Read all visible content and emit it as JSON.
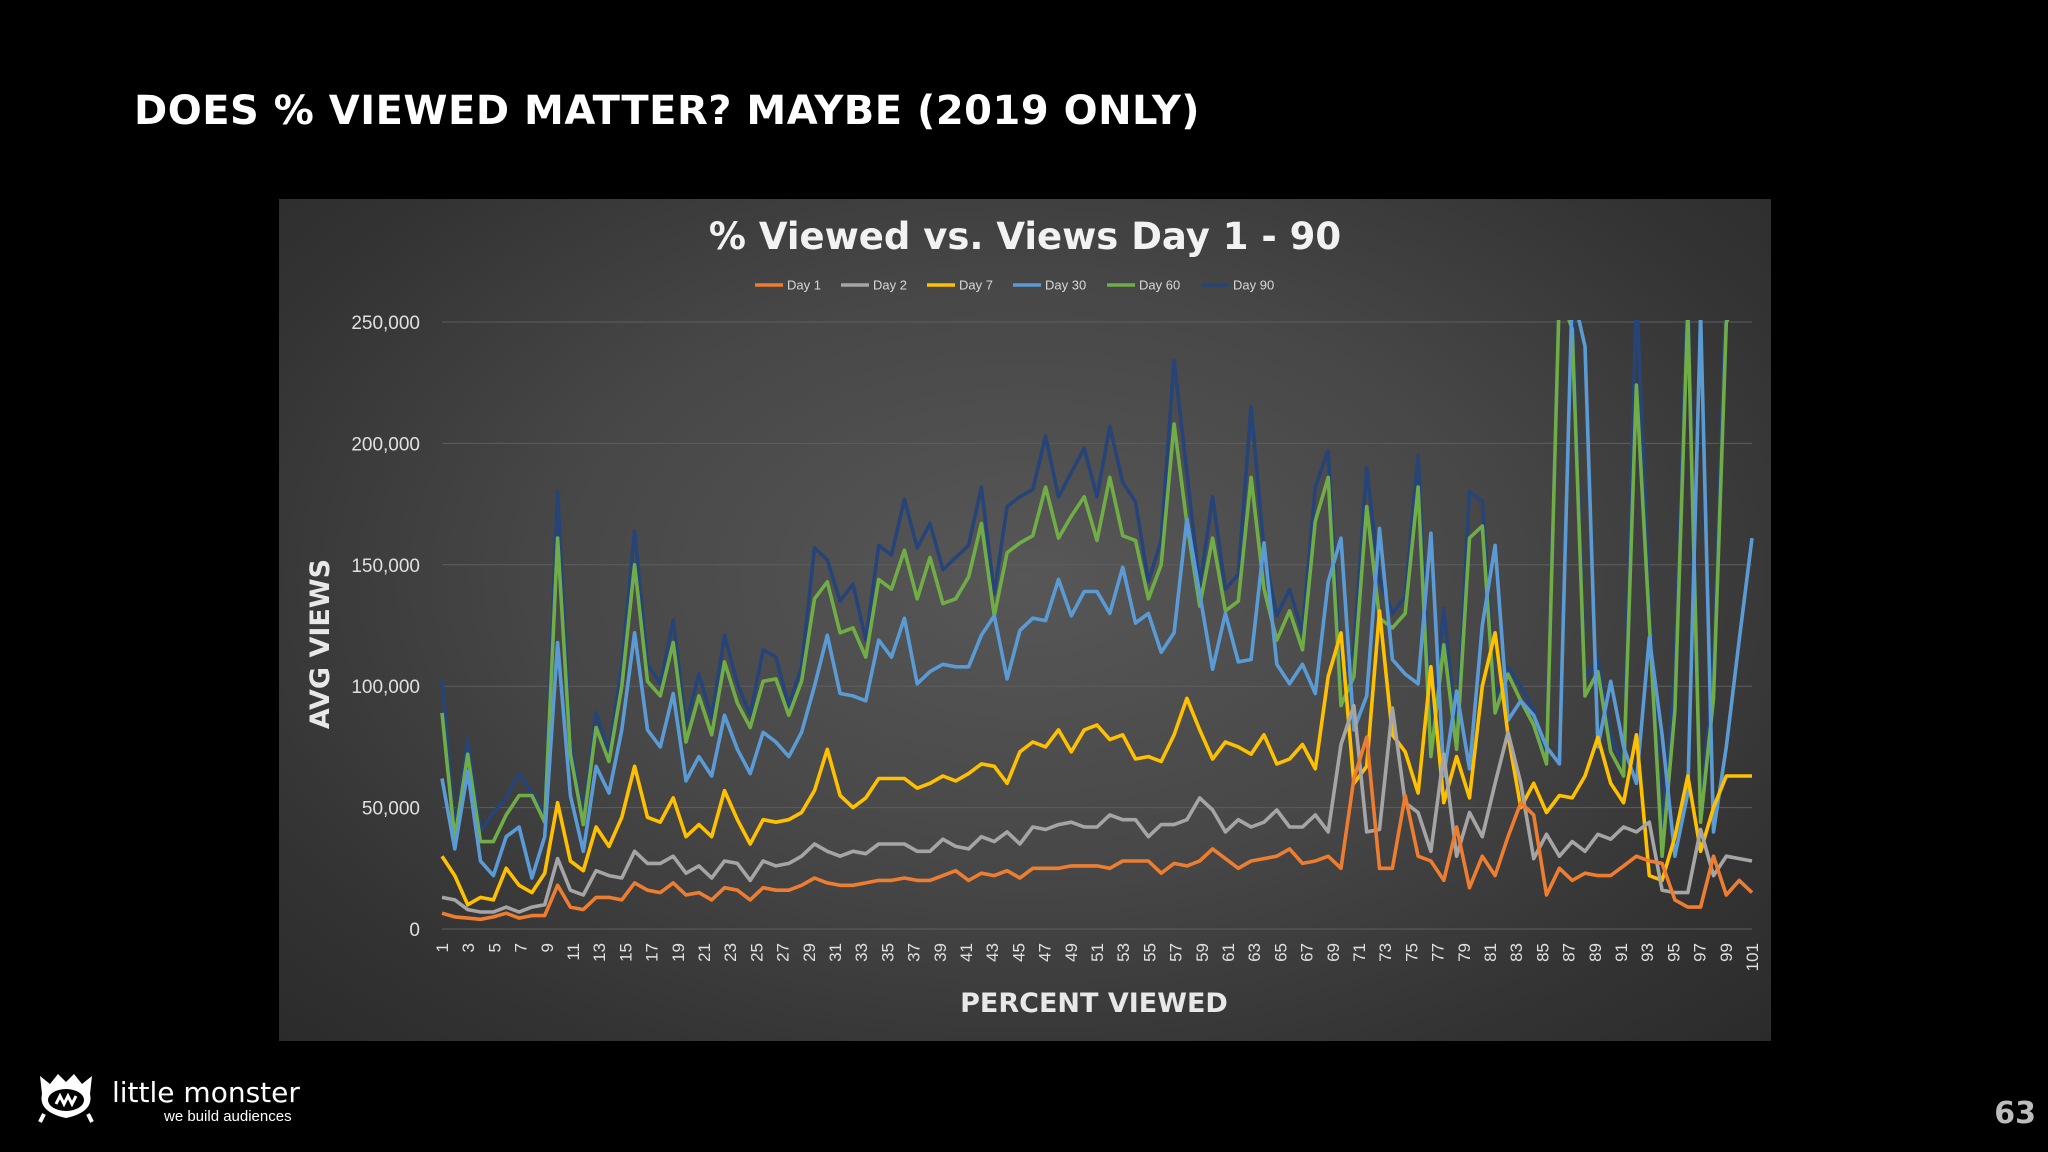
{
  "slide": {
    "title": "DOES % VIEWED MATTER? MAYBE (2019 ONLY)",
    "page_number": "63"
  },
  "logo": {
    "name": "little monster",
    "tagline": "we build audiences",
    "icon": "monster-cat-icon"
  },
  "colors": {
    "background": "#000000",
    "panel": "#474747"
  },
  "chart_data": {
    "type": "line",
    "title": "% Viewed vs. Views Day 1 - 90",
    "xlabel": "PERCENT VIEWED",
    "ylabel": "AVG VIEWS",
    "ylim": [
      0,
      250000
    ],
    "yticks": [
      "0",
      "50,000",
      "100,000",
      "150,000",
      "200,000",
      "250,000"
    ],
    "x_range": [
      1,
      101
    ],
    "x_tick_step": 2,
    "grid": true,
    "legend_position": "top",
    "series": [
      {
        "name": "Day 1",
        "color": "#ED7D31",
        "values": [
          6500,
          5000,
          4500,
          4000,
          5000,
          6500,
          4500,
          5500,
          5500,
          18000,
          9000,
          8000,
          13000,
          13000,
          12000,
          19000,
          16000,
          15000,
          19000,
          14000,
          15000,
          12000,
          17000,
          16000,
          12000,
          17000,
          16000,
          16000,
          18000,
          21000,
          19000,
          18000,
          18000,
          19000,
          20000,
          20000,
          21000,
          20000,
          20000,
          22000,
          24000,
          20000,
          23000,
          22000,
          24000,
          21000,
          25000,
          25000,
          25000,
          26000,
          26000,
          26000,
          25000,
          28000,
          28000,
          28000,
          23000,
          27000,
          26000,
          28000,
          33000,
          29000,
          25000,
          28000,
          29000,
          30000,
          33000,
          27000,
          28000,
          30000,
          25000,
          62000,
          79000,
          25000,
          25000,
          55000,
          30000,
          28000,
          20000,
          42000,
          17000,
          30000,
          22000,
          38000,
          52000,
          47000,
          14000,
          25000,
          20000,
          23000,
          22000,
          22000,
          26000,
          30000,
          28000,
          27000,
          12000,
          9000,
          9000,
          30000,
          14000,
          20000,
          15000
        ]
      },
      {
        "name": "Day 2",
        "color": "#A5A5A5",
        "values": [
          13000,
          12000,
          8000,
          7000,
          7000,
          9000,
          7000,
          9000,
          10000,
          29000,
          16000,
          14000,
          24000,
          22000,
          21000,
          32000,
          27000,
          27000,
          30000,
          23000,
          26000,
          21000,
          28000,
          27000,
          20000,
          28000,
          26000,
          27000,
          30000,
          35000,
          32000,
          30000,
          32000,
          31000,
          35000,
          35000,
          35000,
          32000,
          32000,
          37000,
          34000,
          33000,
          38000,
          36000,
          40000,
          35000,
          42000,
          41000,
          43000,
          44000,
          42000,
          42000,
          47000,
          45000,
          45000,
          38000,
          43000,
          43000,
          45000,
          54000,
          49000,
          40000,
          45000,
          42000,
          44000,
          49000,
          42000,
          42000,
          47000,
          40000,
          76000,
          92000,
          40000,
          41000,
          91000,
          52000,
          48000,
          32000,
          72000,
          30000,
          48000,
          38000,
          60000,
          81000,
          60000,
          29000,
          39000,
          30000,
          36000,
          32000,
          39000,
          37000,
          42000,
          40000,
          44000,
          16000,
          15000,
          15000,
          41000,
          22000,
          30000,
          29000,
          28000
        ]
      },
      {
        "name": "Day 7",
        "color": "#FFC000",
        "values": [
          30000,
          22000,
          10000,
          13000,
          12000,
          25000,
          18000,
          15000,
          23000,
          52000,
          28000,
          24000,
          42000,
          34000,
          46000,
          67000,
          46000,
          44000,
          54000,
          38000,
          43000,
          38000,
          57000,
          45000,
          35000,
          45000,
          44000,
          45000,
          48000,
          57000,
          74000,
          55000,
          50000,
          54000,
          62000,
          62000,
          62000,
          58000,
          60000,
          63000,
          61000,
          64000,
          68000,
          67000,
          60000,
          73000,
          77000,
          75000,
          82000,
          73000,
          82000,
          84000,
          78000,
          80000,
          70000,
          71000,
          69000,
          80000,
          95000,
          82000,
          70000,
          77000,
          75000,
          72000,
          80000,
          68000,
          70000,
          76000,
          66000,
          104000,
          122000,
          60000,
          67000,
          131000,
          80000,
          73000,
          56000,
          108000,
          52000,
          71000,
          54000,
          100000,
          122000,
          80000,
          50000,
          60000,
          48000,
          55000,
          54000,
          63000,
          79000,
          60000,
          52000,
          80000,
          22000,
          20000,
          38000,
          63000,
          32000,
          50000,
          63000,
          63000,
          63000
        ]
      },
      {
        "name": "Day 30",
        "color": "#5B9BD5",
        "values": [
          62000,
          33000,
          65000,
          28000,
          22000,
          38000,
          42000,
          21000,
          38000,
          118000,
          55000,
          32000,
          67000,
          56000,
          82000,
          122000,
          82000,
          75000,
          97000,
          61000,
          71000,
          63000,
          88000,
          74000,
          64000,
          81000,
          77000,
          71000,
          81000,
          100000,
          121000,
          97000,
          96000,
          94000,
          119000,
          112000,
          128000,
          101000,
          106000,
          109000,
          108000,
          108000,
          121000,
          129000,
          103000,
          123000,
          128000,
          127000,
          144000,
          129000,
          139000,
          139000,
          130000,
          149000,
          126000,
          130000,
          114000,
          122000,
          169000,
          138000,
          107000,
          130000,
          110000,
          111000,
          159000,
          109000,
          101000,
          109000,
          97000,
          143000,
          161000,
          82000,
          96000,
          165000,
          111000,
          105000,
          101000,
          163000,
          63000,
          98000,
          66000,
          125000,
          158000,
          86000,
          94000,
          88000,
          75000,
          68000,
          263000,
          240000,
          75000,
          102000,
          75000,
          60000,
          120000,
          80000,
          30000,
          56000,
          253000,
          40000,
          75000,
          119000,
          161000
        ]
      },
      {
        "name": "Day 60",
        "color": "#70AD47",
        "values": [
          89000,
          37000,
          72000,
          36000,
          36000,
          47000,
          55000,
          55000,
          44000,
          161000,
          72000,
          43000,
          83000,
          69000,
          100000,
          150000,
          102000,
          96000,
          118000,
          77000,
          96000,
          80000,
          110000,
          93000,
          83000,
          102000,
          103000,
          88000,
          102000,
          136000,
          143000,
          122000,
          124000,
          112000,
          144000,
          140000,
          156000,
          136000,
          153000,
          134000,
          136000,
          145000,
          167000,
          129000,
          155000,
          159000,
          162000,
          182000,
          161000,
          170000,
          178000,
          160000,
          186000,
          162000,
          160000,
          136000,
          150000,
          208000,
          167000,
          133000,
          161000,
          131000,
          135000,
          186000,
          140000,
          119000,
          131000,
          115000,
          168000,
          186000,
          92000,
          104000,
          174000,
          128000,
          124000,
          130000,
          182000,
          71000,
          117000,
          74000,
          161000,
          166000,
          89000,
          105000,
          94000,
          84000,
          68000,
          263000,
          247000,
          96000,
          106000,
          73000,
          63000,
          224000,
          126000,
          30000,
          90000,
          255000,
          44000,
          95000,
          250000,
          260000,
          260000
        ]
      },
      {
        "name": "Day 90",
        "color": "#264478",
        "values": [
          103000,
          40000,
          78000,
          40000,
          48000,
          54000,
          64000,
          56000,
          48000,
          180000,
          77000,
          46000,
          89000,
          73000,
          108000,
          164000,
          109000,
          101000,
          127000,
          84000,
          105000,
          87000,
          121000,
          101000,
          88000,
          115000,
          112000,
          92000,
          108000,
          157000,
          152000,
          135000,
          142000,
          119000,
          158000,
          154000,
          177000,
          157000,
          167000,
          148000,
          153000,
          158000,
          182000,
          138000,
          174000,
          178000,
          181000,
          203000,
          178000,
          188000,
          198000,
          178000,
          207000,
          184000,
          176000,
          143000,
          160000,
          234000,
          188000,
          141000,
          178000,
          140000,
          146000,
          215000,
          156000,
          129000,
          140000,
          122000,
          182000,
          197000,
          103000,
          115000,
          190000,
          144000,
          130000,
          137000,
          195000,
          80000,
          132000,
          80000,
          180000,
          176000,
          96000,
          108000,
          100000,
          90000,
          71000,
          265000,
          260000,
          103000,
          111000,
          80000,
          67000,
          263000,
          135000,
          40000,
          106000,
          265000,
          47000,
          108000,
          265000,
          263000,
          263000
        ]
      }
    ]
  }
}
